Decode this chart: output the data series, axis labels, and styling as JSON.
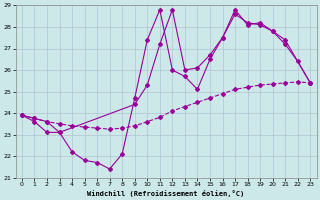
{
  "xlabel": "Windchill (Refroidissement éolien,°C)",
  "background_color": "#cce8e8",
  "line_color": "#990099",
  "xlim": [
    -0.5,
    23.5
  ],
  "ylim": [
    21,
    29
  ],
  "yticks": [
    21,
    22,
    23,
    24,
    25,
    26,
    27,
    28,
    29
  ],
  "xticks": [
    0,
    1,
    2,
    3,
    4,
    5,
    6,
    7,
    8,
    9,
    10,
    11,
    12,
    13,
    14,
    15,
    16,
    17,
    18,
    19,
    20,
    21,
    22,
    23
  ],
  "series1_x": [
    0,
    1,
    2,
    3,
    4,
    5,
    6,
    7,
    8,
    9,
    10,
    11,
    12,
    13,
    14,
    15,
    16,
    17,
    18,
    19,
    20,
    21,
    22,
    23
  ],
  "series1_y": [
    23.9,
    23.6,
    23.1,
    23.1,
    22.2,
    21.8,
    21.7,
    21.4,
    22.1,
    24.7,
    27.4,
    28.8,
    26.0,
    25.7,
    25.1,
    26.5,
    27.5,
    28.8,
    28.1,
    28.2,
    27.8,
    27.2,
    26.4,
    25.4
  ],
  "series2_x": [
    0,
    1,
    2,
    3,
    4,
    5,
    6,
    7,
    8,
    9,
    10,
    11,
    12,
    13,
    14,
    15,
    16,
    17,
    18,
    19,
    20,
    21,
    22,
    23
  ],
  "series2_y": [
    23.9,
    23.75,
    23.6,
    23.5,
    23.4,
    23.35,
    23.3,
    23.25,
    23.3,
    23.4,
    23.6,
    23.8,
    24.1,
    24.3,
    24.5,
    24.7,
    24.9,
    25.1,
    25.2,
    25.3,
    25.35,
    25.4,
    25.45,
    25.4
  ],
  "series3_x": [
    0,
    1,
    2,
    3,
    9,
    10,
    11,
    12,
    13,
    14,
    15,
    16,
    17,
    18,
    19,
    20,
    21,
    23
  ],
  "series3_y": [
    23.9,
    23.75,
    23.6,
    23.1,
    24.4,
    25.3,
    27.2,
    28.8,
    26.0,
    26.1,
    26.7,
    27.5,
    28.6,
    28.2,
    28.1,
    27.8,
    27.4,
    25.4
  ]
}
